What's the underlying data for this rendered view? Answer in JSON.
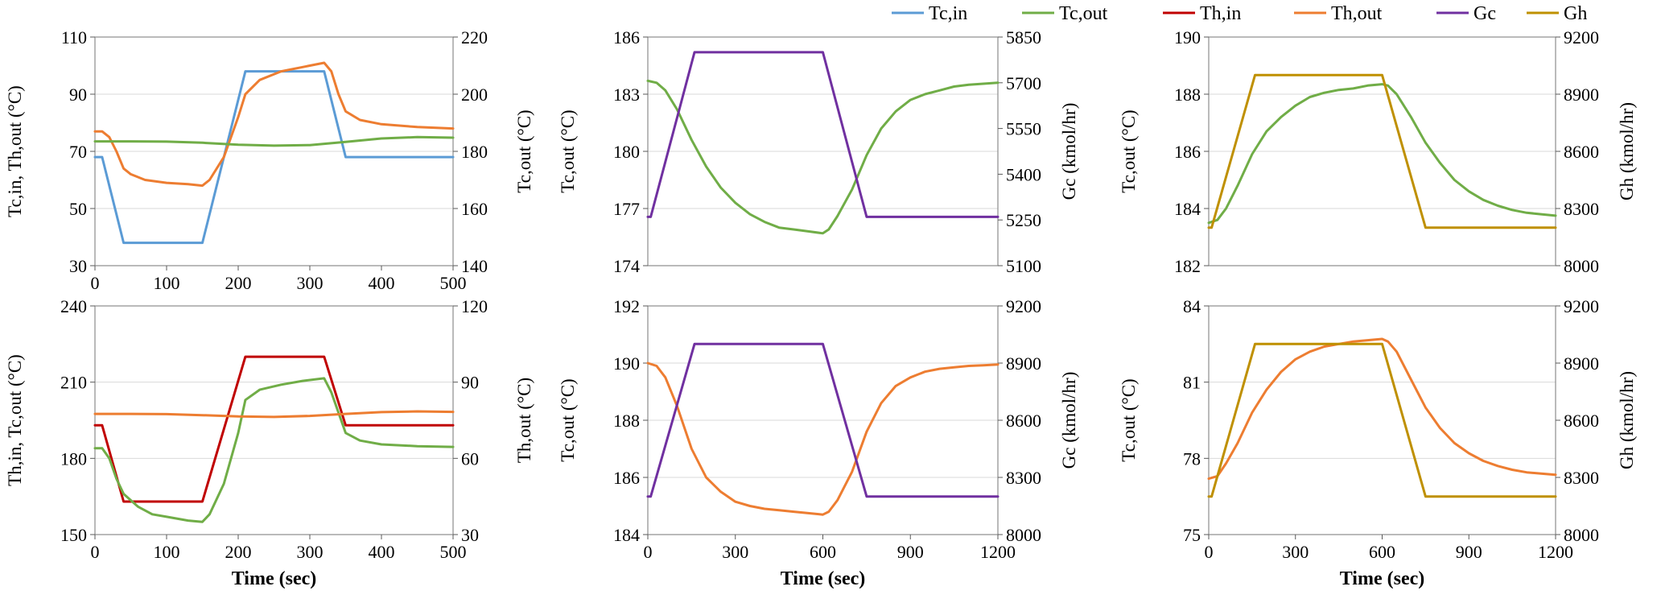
{
  "legend": [
    {
      "key": "tcin",
      "label": "Tc,in",
      "color": "#5B9BD5"
    },
    {
      "key": "tcout",
      "label": "Tc,out",
      "color": "#70AD47"
    },
    {
      "key": "thin",
      "label": "Th,in",
      "color": "#C00000"
    },
    {
      "key": "thout",
      "label": "Th,out",
      "color": "#ED7D31"
    },
    {
      "key": "gc",
      "label": "Gc",
      "color": "#7030A0"
    },
    {
      "key": "gh",
      "label": "Gh",
      "color": "#BF9000"
    }
  ],
  "chart_data": [
    {
      "id": "p1",
      "type": "line",
      "xlim": [
        0,
        500
      ],
      "xticks": [
        0,
        100,
        200,
        300,
        400,
        500
      ],
      "left": {
        "label": "Tc,in,  Th,out  (°C)",
        "ylim": [
          30,
          110
        ],
        "ticks": [
          30,
          50,
          70,
          90,
          110
        ]
      },
      "right": {
        "label": "Tc,out  (°C)",
        "ylim": [
          140,
          220
        ],
        "ticks": [
          140,
          160,
          180,
          200,
          220
        ]
      },
      "xlabel": "",
      "series": [
        {
          "name": "Tc,in",
          "key": "tcin",
          "axis": "left",
          "x": [
            0,
            10,
            40,
            150,
            210,
            320,
            350,
            500
          ],
          "y": [
            68,
            68,
            38,
            38,
            98,
            98,
            68,
            68
          ]
        },
        {
          "name": "Th,out",
          "key": "thout",
          "axis": "left",
          "x": [
            0,
            10,
            20,
            30,
            40,
            50,
            70,
            100,
            130,
            150,
            160,
            180,
            200,
            210,
            230,
            260,
            290,
            320,
            330,
            340,
            350,
            370,
            400,
            450,
            500
          ],
          "y": [
            77,
            77,
            75,
            70,
            64,
            62,
            60,
            59,
            58.5,
            58,
            60,
            68,
            82,
            90,
            95,
            98,
            99.5,
            101,
            98,
            90,
            84,
            81,
            79.5,
            78.5,
            78
          ]
        },
        {
          "name": "Tc,out",
          "key": "tcout",
          "axis": "right",
          "x": [
            0,
            50,
            100,
            150,
            200,
            250,
            300,
            350,
            400,
            450,
            500
          ],
          "y": [
            183.5,
            183.5,
            183.4,
            183,
            182.3,
            182,
            182.2,
            183.3,
            184.5,
            185,
            184.8
          ]
        }
      ]
    },
    {
      "id": "p2",
      "type": "line",
      "xlim": [
        0,
        1200
      ],
      "xticks": [],
      "left": {
        "label": "Tc,out  (°C)",
        "ylim": [
          174,
          186
        ],
        "ticks": [
          174,
          177,
          180,
          183,
          186
        ]
      },
      "right": {
        "label": "Gc  (kmol/hr)",
        "ylim": [
          5100,
          5850
        ],
        "ticks": [
          5100,
          5250,
          5400,
          5550,
          5700,
          5850
        ]
      },
      "xlabel": "",
      "series": [
        {
          "name": "Tc,out",
          "key": "tcout",
          "axis": "left",
          "x": [
            0,
            30,
            60,
            100,
            150,
            200,
            250,
            300,
            350,
            400,
            450,
            500,
            550,
            600,
            620,
            650,
            700,
            750,
            800,
            850,
            900,
            950,
            1000,
            1050,
            1100,
            1150,
            1200
          ],
          "y": [
            183.7,
            183.6,
            183.2,
            182.2,
            180.6,
            179.2,
            178.1,
            177.3,
            176.7,
            176.3,
            176.0,
            175.9,
            175.8,
            175.7,
            175.9,
            176.6,
            178.0,
            179.8,
            181.2,
            182.1,
            182.7,
            183.0,
            183.2,
            183.4,
            183.5,
            183.55,
            183.6
          ]
        },
        {
          "name": "Gc",
          "key": "gc",
          "axis": "right",
          "x": [
            0,
            10,
            160,
            600,
            750,
            1200
          ],
          "y": [
            5260,
            5260,
            5800,
            5800,
            5260,
            5260
          ]
        }
      ]
    },
    {
      "id": "p3",
      "type": "line",
      "xlim": [
        0,
        1200
      ],
      "xticks": [],
      "left": {
        "label": "Tc,out  (°C)",
        "ylim": [
          182,
          190
        ],
        "ticks": [
          182,
          184,
          186,
          188,
          190
        ]
      },
      "right": {
        "label": "Gh  (kmol/hr)",
        "ylim": [
          8000,
          9200
        ],
        "ticks": [
          8000,
          8300,
          8600,
          8900,
          9200
        ]
      },
      "xlabel": "",
      "series": [
        {
          "name": "Tc,out",
          "key": "tcout",
          "axis": "left",
          "x": [
            0,
            30,
            60,
            100,
            150,
            200,
            250,
            300,
            350,
            400,
            450,
            500,
            550,
            600,
            620,
            650,
            700,
            750,
            800,
            850,
            900,
            950,
            1000,
            1050,
            1100,
            1150,
            1200
          ],
          "y": [
            183.5,
            183.6,
            184.0,
            184.8,
            185.9,
            186.7,
            187.2,
            187.6,
            187.9,
            188.05,
            188.15,
            188.2,
            188.3,
            188.35,
            188.3,
            188.0,
            187.2,
            186.3,
            185.6,
            185.0,
            184.6,
            184.3,
            184.1,
            183.95,
            183.85,
            183.8,
            183.75
          ]
        },
        {
          "name": "Gh",
          "key": "gh",
          "axis": "right",
          "x": [
            0,
            10,
            160,
            600,
            750,
            1200
          ],
          "y": [
            8200,
            8200,
            9000,
            9000,
            8200,
            8200
          ]
        }
      ]
    },
    {
      "id": "p4",
      "type": "line",
      "xlim": [
        0,
        500
      ],
      "xticks": [
        0,
        100,
        200,
        300,
        400,
        500
      ],
      "left": {
        "label": "Th,in,  Tc,out  (°C)",
        "ylim": [
          150,
          240
        ],
        "ticks": [
          150,
          180,
          210,
          240
        ]
      },
      "right": {
        "label": "Th,out  (°C)",
        "ylim": [
          30,
          120
        ],
        "ticks": [
          30,
          60,
          90,
          120
        ]
      },
      "xlabel": "Time  (sec)",
      "series": [
        {
          "name": "Th,in",
          "key": "thin",
          "axis": "left",
          "x": [
            0,
            10,
            40,
            150,
            210,
            320,
            350,
            500
          ],
          "y": [
            193,
            193,
            163,
            163,
            220,
            220,
            193,
            193
          ]
        },
        {
          "name": "Tc,out",
          "key": "tcout",
          "axis": "left",
          "x": [
            0,
            10,
            20,
            30,
            40,
            60,
            80,
            100,
            130,
            150,
            160,
            180,
            200,
            210,
            230,
            260,
            290,
            320,
            330,
            340,
            350,
            370,
            400,
            450,
            500
          ],
          "y": [
            184,
            184,
            180,
            172,
            166,
            161,
            158,
            157,
            155.5,
            155,
            158,
            170,
            190,
            203,
            207,
            209,
            210.5,
            211.5,
            206,
            198,
            190,
            187,
            185.5,
            184.8,
            184.5
          ]
        },
        {
          "name": "Th,out",
          "key": "thout",
          "axis": "right",
          "x": [
            0,
            50,
            100,
            150,
            200,
            250,
            300,
            350,
            400,
            450,
            500
          ],
          "y": [
            77.5,
            77.5,
            77.4,
            77,
            76.5,
            76.3,
            76.7,
            77.5,
            78.2,
            78.5,
            78.3
          ]
        }
      ]
    },
    {
      "id": "p5",
      "type": "line",
      "xlim": [
        0,
        1200
      ],
      "xticks": [
        0,
        300,
        600,
        900,
        1200
      ],
      "left": {
        "label": "Tc,out  (°C)",
        "ylim": [
          184,
          192
        ],
        "ticks": [
          184,
          186,
          188,
          190,
          192
        ]
      },
      "right": {
        "label": "Gc  (kmol/hr)",
        "ylim": [
          8000,
          9200
        ],
        "ticks": [
          8000,
          8300,
          8600,
          8900,
          9200
        ]
      },
      "xlabel": "Time  (sec)",
      "series": [
        {
          "name": "Th,out",
          "key": "thout",
          "axis": "left",
          "x": [
            0,
            30,
            60,
            100,
            150,
            200,
            250,
            300,
            350,
            400,
            450,
            500,
            550,
            600,
            620,
            650,
            700,
            750,
            800,
            850,
            900,
            950,
            1000,
            1050,
            1100,
            1150,
            1200
          ],
          "y": [
            190,
            189.9,
            189.5,
            188.5,
            187.0,
            186.0,
            185.5,
            185.15,
            185.0,
            184.9,
            184.85,
            184.8,
            184.75,
            184.7,
            184.8,
            185.2,
            186.2,
            187.6,
            188.6,
            189.2,
            189.5,
            189.7,
            189.8,
            189.85,
            189.9,
            189.92,
            189.95
          ]
        },
        {
          "name": "Gc",
          "key": "gc",
          "axis": "right",
          "x": [
            0,
            10,
            160,
            600,
            750,
            1200
          ],
          "y": [
            8200,
            8200,
            9000,
            9000,
            8200,
            8200
          ]
        }
      ]
    },
    {
      "id": "p6",
      "type": "line",
      "xlim": [
        0,
        1200
      ],
      "xticks": [
        0,
        300,
        600,
        900,
        1200
      ],
      "left": {
        "label": "Tc,out  (°C)",
        "ylim": [
          75,
          84
        ],
        "ticks": [
          75,
          78,
          81,
          84
        ]
      },
      "right": {
        "label": "Gh  (kmol/hr)",
        "ylim": [
          8000,
          9200
        ],
        "ticks": [
          8000,
          8300,
          8600,
          8900,
          9200
        ]
      },
      "xlabel": "Time  (sec)",
      "series": [
        {
          "name": "Th,out",
          "key": "thout",
          "axis": "left",
          "x": [
            0,
            30,
            60,
            100,
            150,
            200,
            250,
            300,
            350,
            400,
            450,
            500,
            550,
            600,
            620,
            650,
            700,
            750,
            800,
            850,
            900,
            950,
            1000,
            1050,
            1100,
            1150,
            1200
          ],
          "y": [
            77.2,
            77.3,
            77.8,
            78.6,
            79.8,
            80.7,
            81.4,
            81.9,
            82.2,
            82.4,
            82.5,
            82.6,
            82.65,
            82.7,
            82.6,
            82.2,
            81.1,
            80.0,
            79.2,
            78.6,
            78.2,
            77.9,
            77.7,
            77.55,
            77.45,
            77.4,
            77.35
          ]
        },
        {
          "name": "Gh",
          "key": "gh",
          "axis": "right",
          "x": [
            0,
            10,
            160,
            600,
            750,
            1200
          ],
          "y": [
            8200,
            8200,
            9000,
            9000,
            8200,
            8200
          ]
        }
      ]
    }
  ]
}
